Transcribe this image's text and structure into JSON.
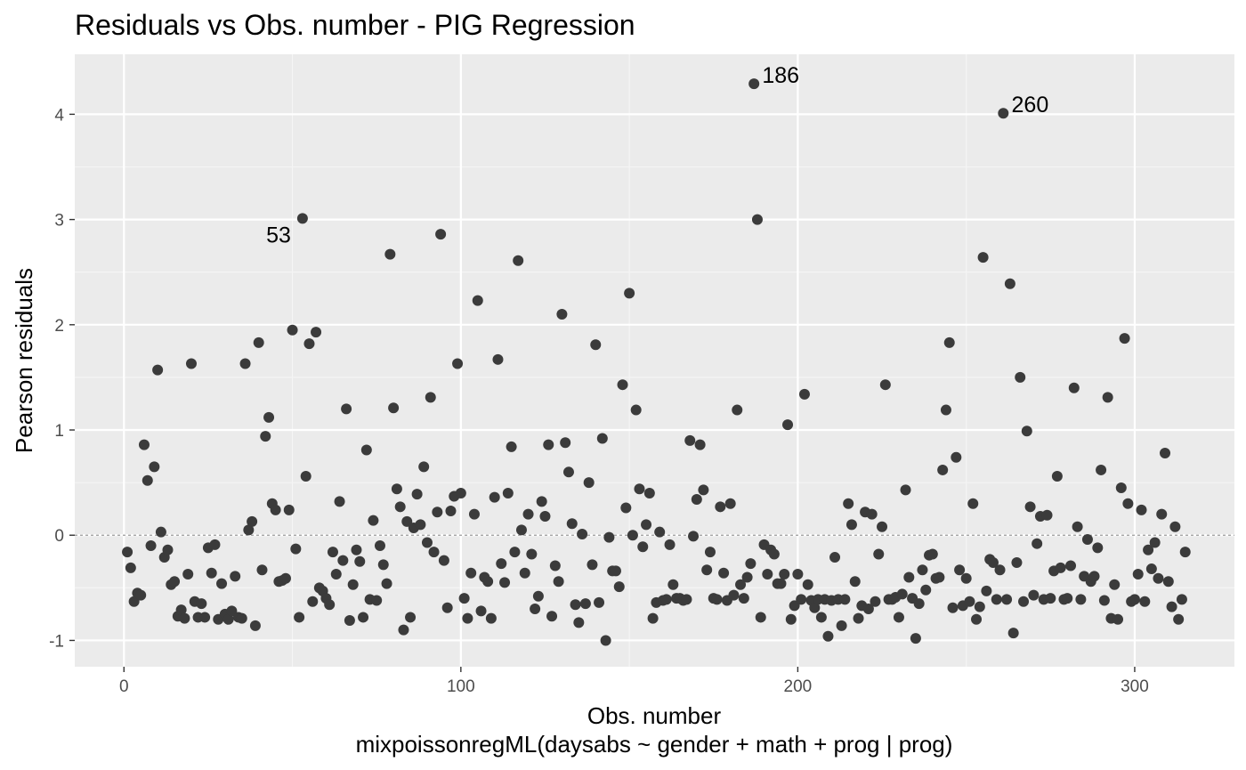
{
  "chart_data": {
    "type": "scatter",
    "title": "Residuals vs Obs. number - PIG Regression",
    "xlabel": "Obs. number",
    "subtitle": "mixpoissonregML(daysabs ~ gender + math + prog | prog)",
    "ylabel": "Pearson residuals",
    "xlim": [
      -14.6,
      329.6
    ],
    "ylim": [
      -1.25,
      4.57
    ],
    "xticks": [
      0,
      100,
      200,
      300
    ],
    "yticks": [
      -1,
      0,
      1,
      2,
      3,
      4
    ],
    "reference_line": {
      "y": 0,
      "style": "dashed"
    },
    "point_color": "#3b3b3b",
    "panel_background": "#ebebeb",
    "grid": true,
    "annotations": [
      {
        "label": "53",
        "x": 53,
        "y": 3.01
      },
      {
        "label": "186",
        "x": 186,
        "y": 4.29
      },
      {
        "label": "260",
        "x": 260,
        "y": 4.01
      }
    ],
    "y": [
      -0.16,
      -0.31,
      -0.63,
      -0.55,
      -0.57,
      0.86,
      0.52,
      -0.1,
      0.65,
      1.57,
      0.03,
      -0.21,
      -0.14,
      -0.47,
      -0.44,
      -0.77,
      -0.71,
      -0.79,
      -0.37,
      1.63,
      -0.63,
      -0.78,
      -0.65,
      -0.78,
      -0.12,
      -0.36,
      -0.09,
      -0.8,
      -0.46,
      -0.75,
      -0.8,
      -0.72,
      -0.39,
      -0.78,
      -0.79,
      1.63,
      0.05,
      0.13,
      -0.86,
      1.83,
      -0.33,
      0.94,
      1.12,
      0.3,
      0.24,
      -0.44,
      -0.43,
      -0.41,
      0.24,
      1.95,
      -0.13,
      -0.78,
      3.01,
      0.56,
      1.82,
      -0.63,
      1.93,
      -0.5,
      -0.53,
      -0.6,
      -0.66,
      -0.16,
      -0.37,
      0.32,
      -0.24,
      1.2,
      -0.81,
      -0.47,
      -0.14,
      -0.25,
      -0.78,
      0.81,
      -0.61,
      0.14,
      -0.62,
      -0.1,
      -0.28,
      -0.46,
      2.67,
      1.21,
      0.44,
      0.27,
      -0.9,
      0.13,
      -0.78,
      0.07,
      0.39,
      0.1,
      0.65,
      -0.07,
      1.31,
      -0.16,
      0.22,
      2.86,
      -0.24,
      -0.69,
      0.23,
      0.37,
      1.63,
      0.4,
      -0.6,
      -0.79,
      -0.36,
      0.2,
      2.23,
      -0.72,
      -0.4,
      -0.44,
      -0.79,
      0.36,
      1.67,
      -0.27,
      -0.45,
      0.4,
      0.84,
      -0.16,
      2.61,
      0.05,
      -0.36,
      0.2,
      -0.18,
      -0.7,
      -0.58,
      0.32,
      0.18,
      0.86,
      -0.77,
      -0.29,
      -0.44,
      2.1,
      0.88,
      0.6,
      0.11,
      -0.66,
      -0.83,
      0.01,
      -0.65,
      0.5,
      -0.28,
      1.81,
      -0.64,
      0.92,
      -1.0,
      -0.02,
      -0.34,
      -0.34,
      -0.49,
      1.43,
      0.26,
      2.3,
      0.0,
      1.19,
      0.44,
      -0.11,
      0.1,
      0.4,
      -0.79,
      -0.64,
      0.03,
      -0.62,
      -0.61,
      -0.09,
      -0.47,
      -0.6,
      -0.6,
      -0.62,
      -0.61,
      0.9,
      -0.01,
      0.34,
      0.86,
      0.43,
      -0.33,
      -0.16,
      -0.6,
      -0.61,
      0.27,
      -0.36,
      -0.62,
      0.3,
      -0.57,
      1.19,
      -0.47,
      -0.6,
      -0.4,
      -0.27,
      4.29,
      3.0,
      -0.78,
      -0.09,
      -0.37,
      -0.14,
      -0.18,
      -0.46,
      -0.46,
      -0.37,
      1.05,
      -0.8,
      -0.67,
      -0.37,
      -0.61,
      1.34,
      -0.47,
      -0.62,
      -0.69,
      -0.61,
      -0.78,
      -0.61,
      -0.96,
      -0.62,
      -0.21,
      -0.61,
      -0.86,
      -0.61,
      0.3,
      0.1,
      -0.44,
      -0.79,
      -0.67,
      0.22,
      -0.7,
      0.2,
      -0.63,
      -0.18,
      0.08,
      1.43,
      -0.61,
      -0.61,
      -0.59,
      -0.78,
      -0.56,
      0.43,
      -0.4,
      -0.6,
      -0.98,
      -0.65,
      -0.33,
      -0.52,
      -0.19,
      -0.18,
      -0.41,
      -0.4,
      0.62,
      1.19,
      1.83,
      -0.69,
      0.74,
      -0.33,
      -0.67,
      -0.41,
      -0.63,
      0.3,
      -0.8,
      -0.68,
      2.64,
      -0.53,
      -0.23,
      -0.26,
      -0.61,
      -0.33,
      4.01,
      -0.61,
      2.39,
      -0.93,
      -0.26,
      1.5,
      -0.63,
      0.99,
      0.27,
      -0.57,
      -0.08,
      0.18,
      -0.61,
      0.19,
      -0.6,
      -0.34,
      0.56,
      -0.31,
      -0.61,
      -0.6,
      -0.29,
      1.4,
      0.08,
      -0.61,
      -0.39,
      -0.04,
      -0.44,
      -0.39,
      -0.12,
      0.62,
      -0.62,
      1.31,
      -0.79,
      -0.47,
      -0.8,
      0.45,
      1.87,
      0.3,
      -0.63,
      -0.61,
      -0.37,
      0.24,
      -0.63,
      -0.14,
      -0.32,
      -0.07,
      -0.41,
      0.2,
      0.78,
      -0.44,
      -0.68,
      0.08,
      -0.8,
      -0.61,
      -0.16
    ]
  }
}
